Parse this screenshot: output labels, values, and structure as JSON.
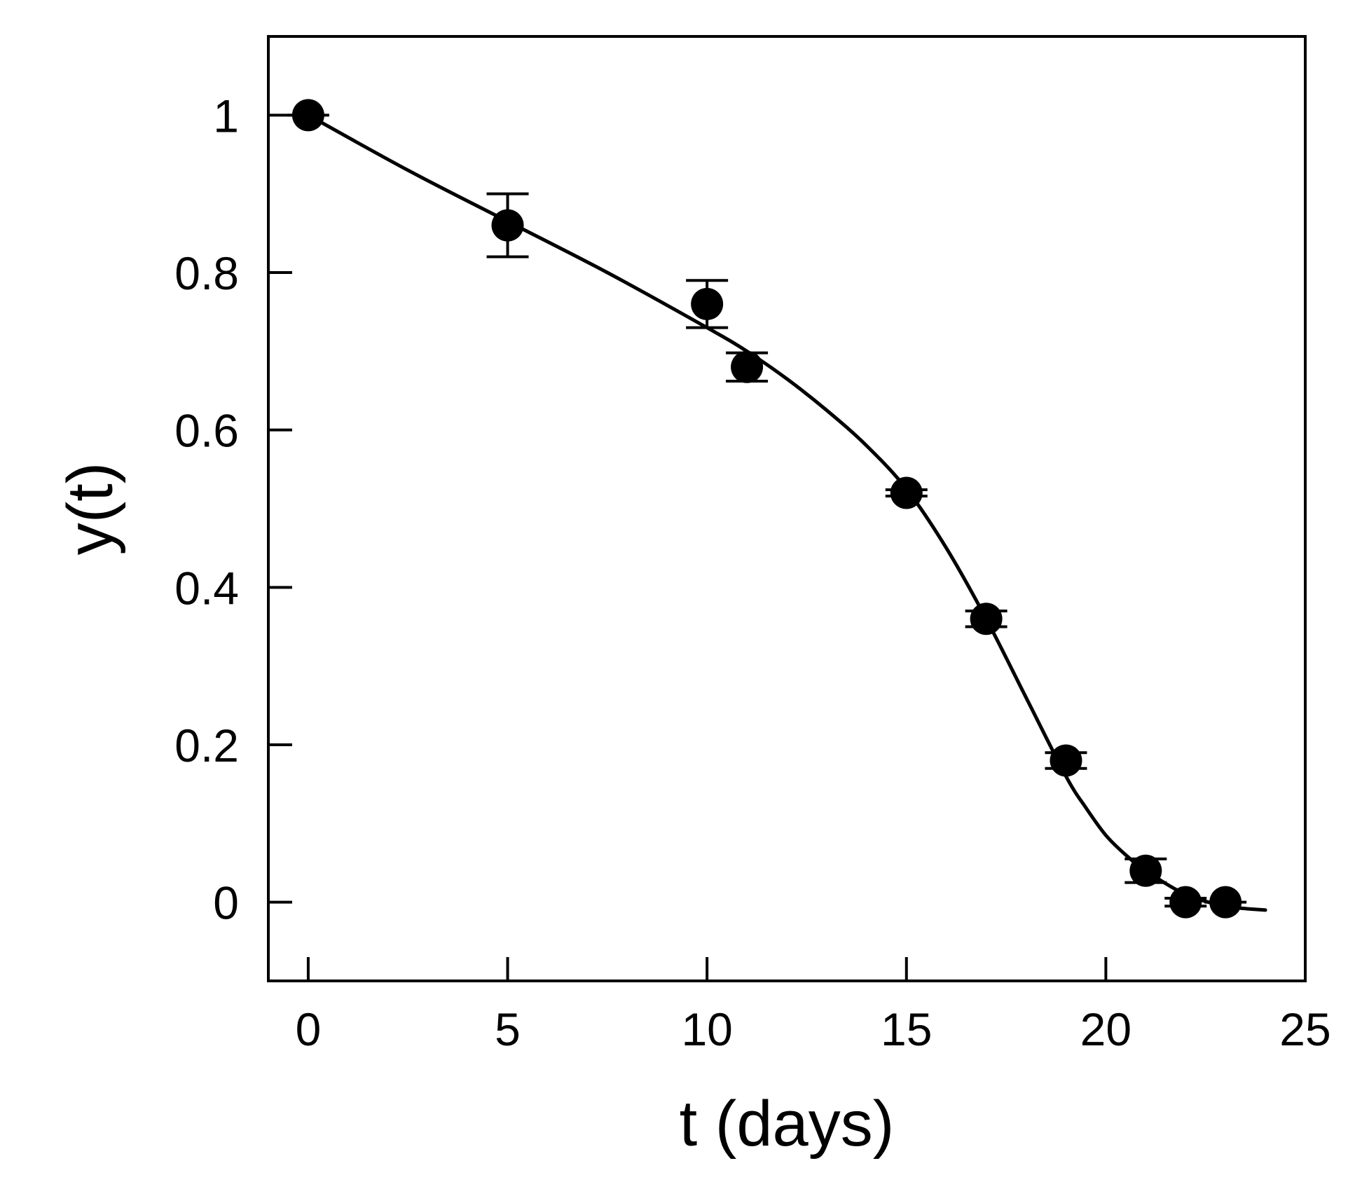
{
  "chart_data": {
    "type": "scatter",
    "title": "",
    "xlabel": "t (days)",
    "ylabel": "y(t)",
    "xlim": [
      -1,
      25
    ],
    "ylim": [
      -0.1,
      1.1
    ],
    "xticks": [
      0,
      5,
      10,
      15,
      20,
      25
    ],
    "yticks": [
      0,
      0.2,
      0.4,
      0.6,
      0.8,
      1
    ],
    "grid": false,
    "legend": "none",
    "colors": {
      "marker": "#000000",
      "line": "#000000",
      "frame": "#000000"
    },
    "series": [
      {
        "kind": "points-with-error-bars",
        "points": [
          {
            "x": 0,
            "y": 1.0,
            "err": 0.0
          },
          {
            "x": 5,
            "y": 0.86,
            "err": 0.04
          },
          {
            "x": 10,
            "y": 0.76,
            "err": 0.03
          },
          {
            "x": 11,
            "y": 0.68,
            "err": 0.018
          },
          {
            "x": 15,
            "y": 0.52,
            "err": 0.004
          },
          {
            "x": 17,
            "y": 0.36,
            "err": 0.01
          },
          {
            "x": 19,
            "y": 0.18,
            "err": 0.01
          },
          {
            "x": 21,
            "y": 0.04,
            "err": 0.015
          },
          {
            "x": 22,
            "y": 0.0,
            "err": 0.005
          },
          {
            "x": 23,
            "y": 0.0,
            "err": 0.0
          }
        ]
      },
      {
        "kind": "fit-line",
        "x": [
          0,
          2.5,
          5,
          7.5,
          10,
          11,
          12,
          13,
          14,
          15,
          16,
          17,
          18,
          19,
          19.5,
          20,
          20.5,
          21,
          22,
          23,
          24
        ],
        "y": [
          1.0,
          0.93,
          0.865,
          0.8,
          0.73,
          0.7,
          0.665,
          0.625,
          0.58,
          0.525,
          0.45,
          0.36,
          0.26,
          0.16,
          0.12,
          0.085,
          0.06,
          0.04,
          0.01,
          -0.005,
          -0.01
        ]
      }
    ]
  }
}
